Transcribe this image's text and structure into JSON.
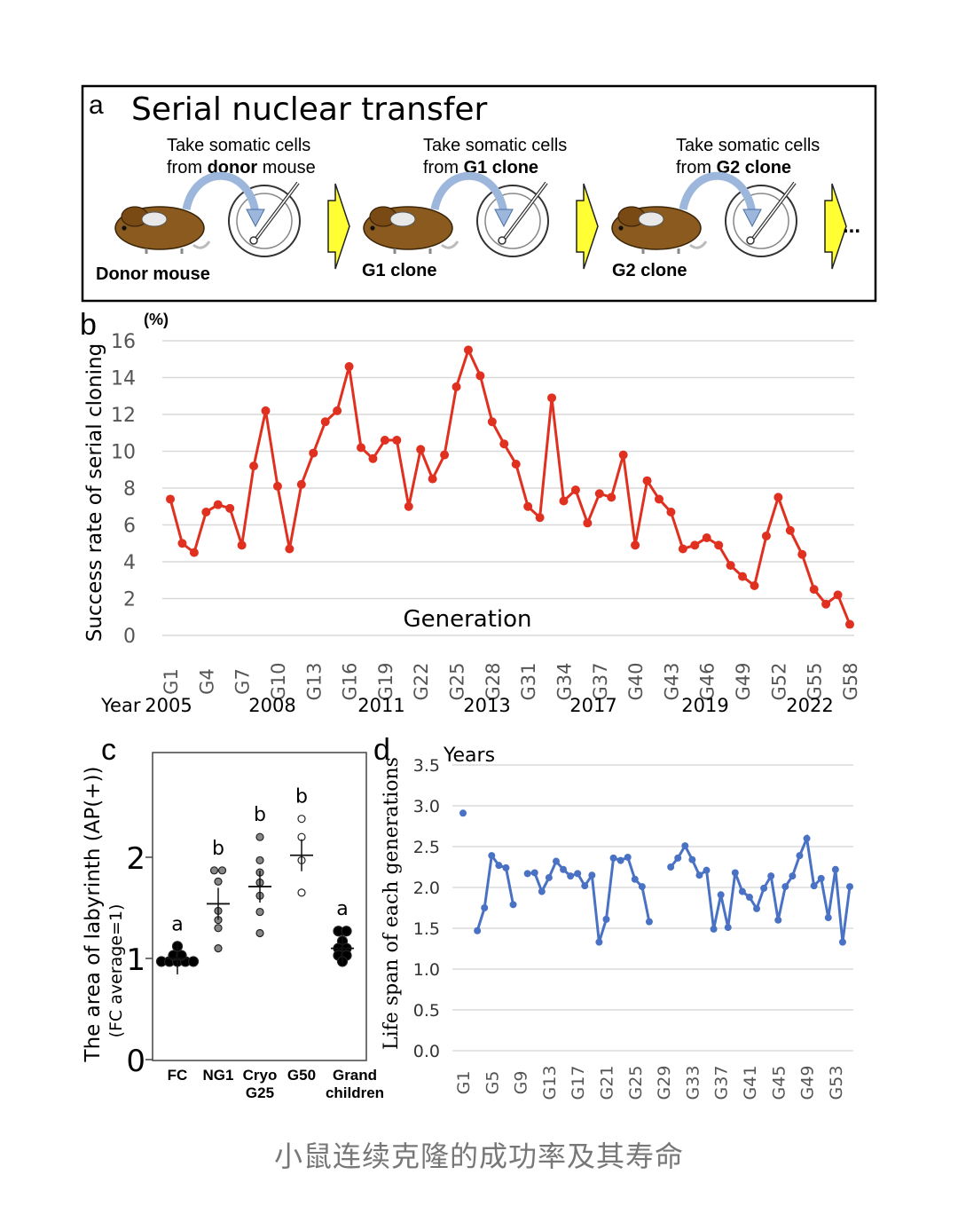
{
  "caption": "小鼠连续克隆的成功率及其寿命",
  "panel_a": {
    "letter": "a",
    "title": "Serial nuclear transfer",
    "steps": [
      {
        "line1": "Take somatic cells",
        "line2_pre": "from ",
        "line2_bold": "donor",
        "line2_post": " mouse",
        "label": "Donor mouse"
      },
      {
        "line1": "Take somatic cells",
        "line2_pre": "from ",
        "line2_bold": "G1 clone",
        "line2_post": "",
        "label": "G1 clone"
      },
      {
        "line1": "Take somatic cells",
        "line2_pre": "from ",
        "line2_bold": "G2 clone",
        "line2_post": "",
        "label": "G2 clone"
      }
    ],
    "ellipsis": "...",
    "colors": {
      "mouse": "#8B5A1E",
      "arrow": "#FFFF33",
      "curve_arrow": "#9DB7DC"
    }
  },
  "chart_data": [
    {
      "panel": "b",
      "type": "line",
      "ylabel": "Success rate of serial cloning",
      "yunit": "(%)",
      "xlabel": "Generation",
      "ylim": [
        0,
        16
      ],
      "yticks": [
        0,
        2,
        4,
        6,
        8,
        10,
        12,
        14,
        16
      ],
      "grid": true,
      "color": "#E03020",
      "x_tick_labels": [
        "G1",
        "G4",
        "G7",
        "G10",
        "G13",
        "G16",
        "G19",
        "G22",
        "G25",
        "G28",
        "G31",
        "G34",
        "G37",
        "G40",
        "G43",
        "G46",
        "G49",
        "G52",
        "G55",
        "G58"
      ],
      "year_label": "Year",
      "years": [
        {
          "label": "2005",
          "gen": 1
        },
        {
          "label": "2008",
          "gen": 10
        },
        {
          "label": "2011",
          "gen": 19
        },
        {
          "label": "2013",
          "gen": 28
        },
        {
          "label": "2017",
          "gen": 37
        },
        {
          "label": "2019",
          "gen": 46
        },
        {
          "label": "2022",
          "gen": 55
        }
      ],
      "x": [
        1,
        2,
        3,
        4,
        5,
        6,
        7,
        8,
        9,
        10,
        11,
        12,
        13,
        14,
        15,
        16,
        17,
        18,
        19,
        20,
        21,
        22,
        23,
        24,
        25,
        26,
        27,
        28,
        29,
        30,
        31,
        32,
        33,
        34,
        35,
        36,
        37,
        38,
        39,
        40,
        41,
        42,
        43,
        44,
        45,
        46,
        47,
        48,
        49,
        50,
        51,
        52,
        53,
        54,
        55,
        56,
        57,
        58
      ],
      "values": [
        7.4,
        5.0,
        4.5,
        6.7,
        7.1,
        6.9,
        4.9,
        9.2,
        12.2,
        8.1,
        4.7,
        8.2,
        9.9,
        11.6,
        12.2,
        14.6,
        10.2,
        9.6,
        10.6,
        10.6,
        7.0,
        10.1,
        8.5,
        9.8,
        13.5,
        15.5,
        14.1,
        11.6,
        10.4,
        9.3,
        7.0,
        6.4,
        12.9,
        7.3,
        7.9,
        6.1,
        7.7,
        7.5,
        9.8,
        4.9,
        8.4,
        7.4,
        6.7,
        4.7,
        4.9,
        5.3,
        4.9,
        3.8,
        3.2,
        2.7,
        5.4,
        7.5,
        5.7,
        4.4,
        2.5,
        1.7,
        2.2,
        0.6
      ]
    },
    {
      "panel": "c",
      "type": "scatter",
      "ylabel": "The area of labyrinth (AP(+))",
      "ylabel2": "(FC average=1)",
      "ylim": [
        0,
        3
      ],
      "yticks": [
        0,
        1,
        2
      ],
      "categories": [
        "FC",
        "NG1",
        "Cryo G25",
        "G50",
        "Grand children"
      ],
      "cat_lines": [
        [
          "FC"
        ],
        [
          "NG1"
        ],
        [
          "Cryo",
          "G25"
        ],
        [
          "G50"
        ],
        [
          "Grand",
          "children"
        ]
      ],
      "sig_letters": [
        "a",
        "b",
        "b",
        "b",
        "a"
      ],
      "means": [
        1.0,
        1.54,
        1.71,
        2.02,
        1.1
      ],
      "points": [
        [
          0.97,
          0.97,
          0.97,
          0.97,
          0.97,
          1.03,
          1.03,
          1.12
        ],
        [
          1.87,
          1.87,
          1.76,
          1.47,
          1.38,
          1.3,
          1.1
        ],
        [
          2.2,
          1.97,
          1.85,
          1.75,
          1.62,
          1.46,
          1.25
        ],
        [
          2.38,
          2.2,
          1.97,
          1.65
        ],
        [
          1.27,
          1.27,
          1.17,
          1.1,
          1.1,
          1.03,
          1.03,
          0.97
        ]
      ],
      "point_styles": [
        "filled",
        "shaded",
        "shaded",
        "open",
        "filled"
      ]
    },
    {
      "panel": "d",
      "type": "line",
      "ylabel": "Life span of each generations",
      "yunit": "Years",
      "ylim": [
        0,
        3.5
      ],
      "yticks": [
        "0.0",
        "0.5",
        "1.0",
        "1.5",
        "2.0",
        "2.5",
        "3.0",
        "3.5"
      ],
      "grid": true,
      "color": "#4A72C4",
      "x_tick_labels": [
        "G1",
        "G5",
        "G9",
        "G13",
        "G17",
        "G21",
        "G25",
        "G29",
        "G33",
        "G37",
        "G41",
        "G45",
        "G49",
        "G53"
      ],
      "segments": [
        {
          "x": [
            1
          ],
          "values": [
            2.91
          ]
        },
        {
          "x": [
            3,
            4,
            5,
            6,
            7,
            8
          ],
          "values": [
            1.47,
            1.75,
            2.39,
            2.27,
            2.24,
            1.79
          ]
        },
        {
          "x": [
            10,
            11,
            12,
            13,
            14,
            15,
            16,
            17,
            18,
            19,
            20,
            21,
            22,
            23,
            24,
            25,
            26,
            27
          ],
          "values": [
            2.17,
            2.18,
            1.95,
            2.12,
            2.32,
            2.22,
            2.14,
            2.17,
            2.02,
            2.15,
            1.33,
            1.61,
            2.36,
            2.33,
            2.37,
            2.1,
            2.01,
            1.58
          ]
        },
        {
          "x": [
            30,
            31,
            32,
            33,
            34,
            35,
            36,
            37,
            38,
            39,
            40,
            41,
            42,
            43,
            44,
            45,
            46,
            47,
            48,
            49,
            50,
            51,
            52,
            53,
            54,
            55
          ],
          "values": [
            2.25,
            2.36,
            2.51,
            2.34,
            2.15,
            2.21,
            1.49,
            1.91,
            1.51,
            2.18,
            1.95,
            1.88,
            1.74,
            1.99,
            2.14,
            1.6,
            2.01,
            2.14,
            2.39,
            2.6,
            2.02,
            2.11,
            1.63,
            2.22,
            1.33,
            2.01
          ]
        }
      ]
    }
  ]
}
